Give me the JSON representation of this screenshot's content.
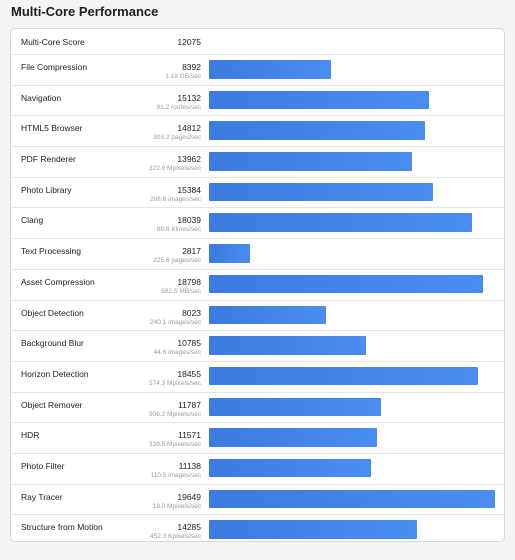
{
  "page": {
    "title": "Multi-Core Performance"
  },
  "score": {
    "label": "Multi-Core Score",
    "value": "12075"
  },
  "colors": {
    "bar": "#3c7be0"
  },
  "chart_data": {
    "type": "bar",
    "orientation": "horizontal",
    "title": "Multi-Core Performance",
    "xlim": [
      0,
      19649
    ],
    "categories": [
      "File Compression",
      "Navigation",
      "HTML5 Browser",
      "PDF Renderer",
      "Photo Library",
      "Clang",
      "Text Processing",
      "Asset Compression",
      "Object Detection",
      "Background Blur",
      "Horizon Detection",
      "Object Remover",
      "HDR",
      "Photo Filter",
      "Ray Tracer",
      "Structure from Motion"
    ],
    "values": [
      8392,
      15132,
      14812,
      13962,
      15384,
      18039,
      2817,
      18798,
      8023,
      10785,
      18455,
      11787,
      11571,
      11138,
      19649,
      14285
    ],
    "rows": [
      {
        "name": "File Compression",
        "score": 8392,
        "score_text": "8392",
        "unit": "1.18 GB/sec"
      },
      {
        "name": "Navigation",
        "score": 15132,
        "score_text": "15132",
        "unit": "91.2 routes/sec"
      },
      {
        "name": "HTML5 Browser",
        "score": 14812,
        "score_text": "14812",
        "unit": "303.2 pages/sec"
      },
      {
        "name": "PDF Renderer",
        "score": 13962,
        "score_text": "13962",
        "unit": "322.0 Mpixels/sec"
      },
      {
        "name": "Photo Library",
        "score": 15384,
        "score_text": "15384",
        "unit": "208.8 images/sec"
      },
      {
        "name": "Clang",
        "score": 18039,
        "score_text": "18039",
        "unit": "88.8 Klines/sec"
      },
      {
        "name": "Text Processing",
        "score": 2817,
        "score_text": "2817",
        "unit": "225.6 pages/sec"
      },
      {
        "name": "Asset Compression",
        "score": 18798,
        "score_text": "18798",
        "unit": "582.5 MB/sec"
      },
      {
        "name": "Object Detection",
        "score": 8023,
        "score_text": "8023",
        "unit": "240.1 images/sec"
      },
      {
        "name": "Background Blur",
        "score": 10785,
        "score_text": "10785",
        "unit": "44.6 images/sec"
      },
      {
        "name": "Horizon Detection",
        "score": 18455,
        "score_text": "18455",
        "unit": "574.3 Mpixels/sec"
      },
      {
        "name": "Object Remover",
        "score": 11787,
        "score_text": "11787",
        "unit": "906.2 Mpixels/sec"
      },
      {
        "name": "HDR",
        "score": 11571,
        "score_text": "11571",
        "unit": "339.5 Mpixels/sec"
      },
      {
        "name": "Photo Filter",
        "score": 11138,
        "score_text": "11138",
        "unit": "110.5 images/sec"
      },
      {
        "name": "Ray Tracer",
        "score": 19649,
        "score_text": "19649",
        "unit": "19.0 Mpixels/sec"
      },
      {
        "name": "Structure from Motion",
        "score": 14285,
        "score_text": "14285",
        "unit": "452.3 Kpixels/sec"
      }
    ]
  }
}
